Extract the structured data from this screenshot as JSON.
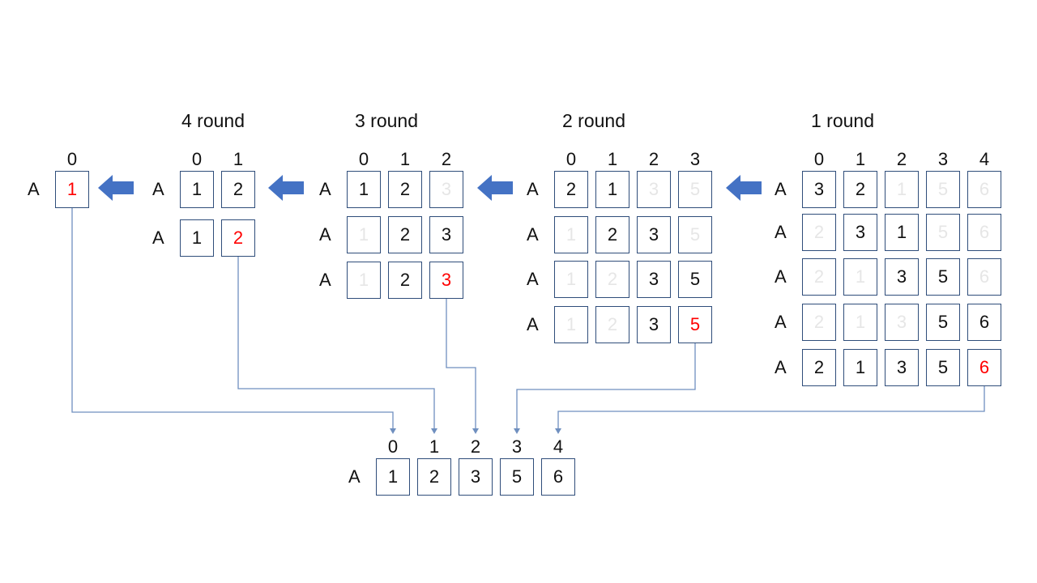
{
  "colors": {
    "box_border": "#2f4d7a",
    "arrow_fill": "#4472c4",
    "connector": "#6f8fbf",
    "highlight": "#ff0000",
    "faded": "#e6e6e6"
  },
  "row_label": "A",
  "stages": [
    {
      "id": "r0",
      "title": "",
      "indices": [
        "0"
      ],
      "rows": [
        [
          {
            "v": "1",
            "s": "red"
          }
        ]
      ]
    },
    {
      "id": "r4",
      "title": "4 round",
      "indices": [
        "0",
        "1"
      ],
      "rows": [
        [
          {
            "v": "1",
            "s": "n"
          },
          {
            "v": "2",
            "s": "n"
          }
        ],
        [
          {
            "v": "1",
            "s": "n"
          },
          {
            "v": "2",
            "s": "red"
          }
        ]
      ]
    },
    {
      "id": "r3",
      "title": "3 round",
      "indices": [
        "0",
        "1",
        "2"
      ],
      "rows": [
        [
          {
            "v": "1",
            "s": "n"
          },
          {
            "v": "2",
            "s": "n"
          },
          {
            "v": "3",
            "s": "faded"
          }
        ],
        [
          {
            "v": "1",
            "s": "faded"
          },
          {
            "v": "2",
            "s": "n"
          },
          {
            "v": "3",
            "s": "n"
          }
        ],
        [
          {
            "v": "1",
            "s": "faded"
          },
          {
            "v": "2",
            "s": "n"
          },
          {
            "v": "3",
            "s": "red"
          }
        ]
      ]
    },
    {
      "id": "r2",
      "title": "2 round",
      "indices": [
        "0",
        "1",
        "2",
        "3"
      ],
      "rows": [
        [
          {
            "v": "2",
            "s": "n"
          },
          {
            "v": "1",
            "s": "n"
          },
          {
            "v": "3",
            "s": "faded"
          },
          {
            "v": "5",
            "s": "faded"
          }
        ],
        [
          {
            "v": "1",
            "s": "faded"
          },
          {
            "v": "2",
            "s": "n"
          },
          {
            "v": "3",
            "s": "n"
          },
          {
            "v": "5",
            "s": "faded"
          }
        ],
        [
          {
            "v": "1",
            "s": "faded"
          },
          {
            "v": "2",
            "s": "faded"
          },
          {
            "v": "3",
            "s": "n"
          },
          {
            "v": "5",
            "s": "n"
          }
        ],
        [
          {
            "v": "1",
            "s": "faded"
          },
          {
            "v": "2",
            "s": "faded"
          },
          {
            "v": "3",
            "s": "n"
          },
          {
            "v": "5",
            "s": "red"
          }
        ]
      ]
    },
    {
      "id": "r1",
      "title": "1 round",
      "indices": [
        "0",
        "1",
        "2",
        "3",
        "4"
      ],
      "rows": [
        [
          {
            "v": "3",
            "s": "n"
          },
          {
            "v": "2",
            "s": "n"
          },
          {
            "v": "1",
            "s": "faded"
          },
          {
            "v": "5",
            "s": "faded"
          },
          {
            "v": "6",
            "s": "faded"
          }
        ],
        [
          {
            "v": "2",
            "s": "faded"
          },
          {
            "v": "3",
            "s": "n"
          },
          {
            "v": "1",
            "s": "n"
          },
          {
            "v": "5",
            "s": "faded"
          },
          {
            "v": "6",
            "s": "faded"
          }
        ],
        [
          {
            "v": "2",
            "s": "faded"
          },
          {
            "v": "1",
            "s": "faded"
          },
          {
            "v": "3",
            "s": "n"
          },
          {
            "v": "5",
            "s": "n"
          },
          {
            "v": "6",
            "s": "faded"
          }
        ],
        [
          {
            "v": "2",
            "s": "faded"
          },
          {
            "v": "1",
            "s": "faded"
          },
          {
            "v": "3",
            "s": "faded"
          },
          {
            "v": "5",
            "s": "n"
          },
          {
            "v": "6",
            "s": "n"
          }
        ],
        [
          {
            "v": "2",
            "s": "n"
          },
          {
            "v": "1",
            "s": "n"
          },
          {
            "v": "3",
            "s": "n"
          },
          {
            "v": "5",
            "s": "n"
          },
          {
            "v": "6",
            "s": "red"
          }
        ]
      ]
    }
  ],
  "result": {
    "indices": [
      "0",
      "1",
      "2",
      "3",
      "4"
    ],
    "values": [
      "1",
      "2",
      "3",
      "5",
      "6"
    ]
  }
}
